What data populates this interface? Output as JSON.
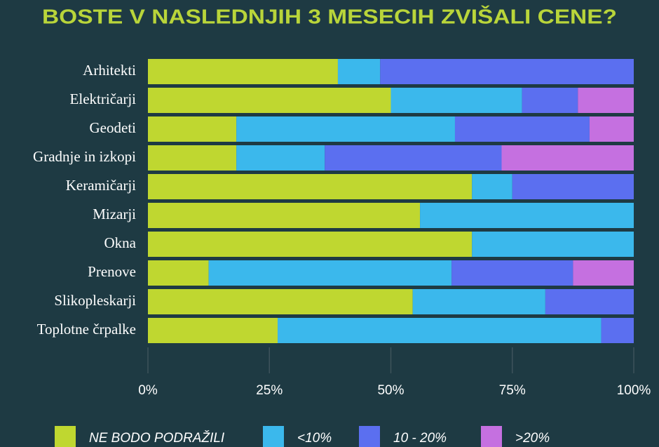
{
  "chart_data": {
    "type": "stacked-bar-horizontal",
    "title": "BOSTE V NASLEDNJIH 3 MESECIH ZVIŠALI CENE?",
    "categories": [
      "Arhitekti",
      "Električarji",
      "Geodeti",
      "Gradnje in izkopi",
      "Keramičarji",
      "Mizarji",
      "Okna",
      "Prenove",
      "Slikopleskarji",
      "Toplotne črpalke"
    ],
    "series": [
      {
        "name": "NE BODO PODRAŽILI",
        "color": "#bfd730",
        "values": [
          39.1,
          50,
          18.2,
          18.2,
          66.7,
          56,
          66.7,
          12.5,
          54.5,
          26.7
        ]
      },
      {
        "name": "<10%",
        "color": "#3bb8ec",
        "values": [
          8.7,
          27,
          45,
          18.2,
          8.3,
          44,
          33.3,
          50,
          27.3,
          66.6
        ]
      },
      {
        "name": "10 - 20%",
        "color": "#5b6ff0",
        "values": [
          52.2,
          11.5,
          27.7,
          36.4,
          25,
          0,
          0,
          25,
          18.2,
          6.7
        ]
      },
      {
        "name": ">20%",
        "color": "#c570e0",
        "values": [
          0,
          11.5,
          9.1,
          27.2,
          0,
          0,
          0,
          12.5,
          0,
          0
        ]
      }
    ],
    "xlim": [
      0,
      100
    ],
    "xticks": [
      {
        "value": 0,
        "label": "0%"
      },
      {
        "value": 25,
        "label": "25%"
      },
      {
        "value": 50,
        "label": "50%"
      },
      {
        "value": 75,
        "label": "75%"
      },
      {
        "value": 100,
        "label": "100%"
      }
    ]
  }
}
